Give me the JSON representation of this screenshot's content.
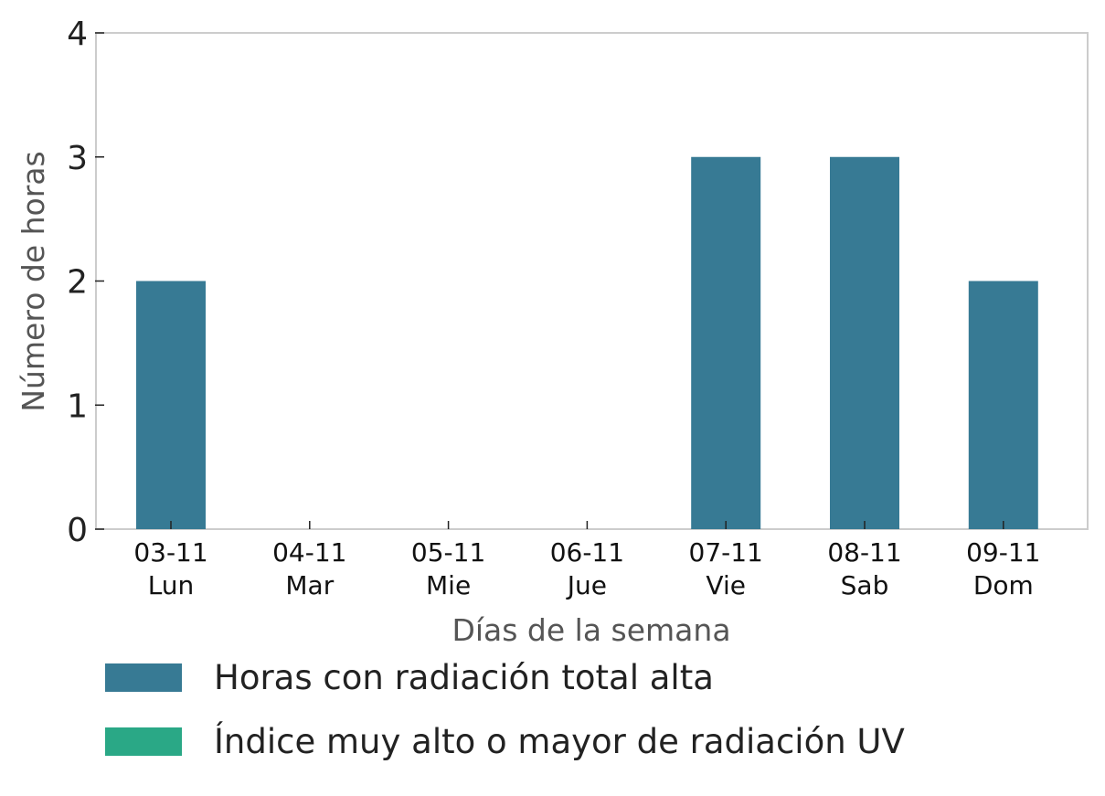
{
  "chart_data": {
    "type": "bar",
    "categories": [
      "03-11\nLun",
      "04-11\nMar",
      "05-11\nMie",
      "06-11\nJue",
      "07-11\nVie",
      "08-11\nSab",
      "09-11\nDom"
    ],
    "series": [
      {
        "name": "Horas con radiación total alta",
        "values": [
          2,
          0,
          0,
          0,
          3,
          3,
          2
        ],
        "color": "#377a94"
      },
      {
        "name": "Índice muy alto o mayor de radiación UV",
        "values": [
          0,
          0,
          0,
          0,
          0,
          0,
          0
        ],
        "color": "#2aa886"
      }
    ],
    "xlabel": "Días de la semana",
    "ylabel": "Número de horas",
    "ylim": [
      0,
      4
    ],
    "yticks": [
      "0",
      "1",
      "2",
      "3",
      "4"
    ],
    "grid": false,
    "legend_position": "bottom-left"
  }
}
